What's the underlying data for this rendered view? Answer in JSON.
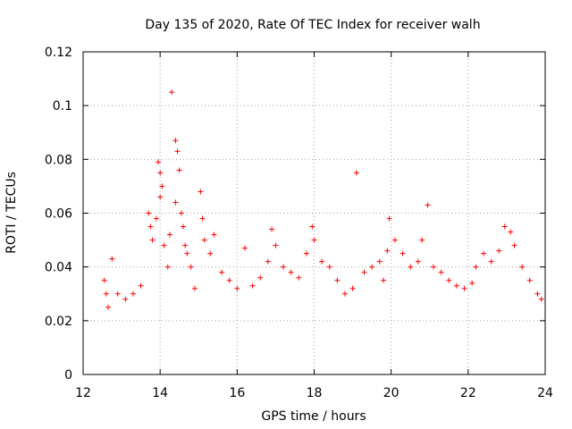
{
  "chart_data": {
    "type": "scatter",
    "title": "Day 135 of 2020, Rate Of TEC Index for receiver walh",
    "xlabel": "GPS time / hours",
    "ylabel": "ROTI / TECUs",
    "xlim": [
      12,
      24
    ],
    "ylim": [
      0,
      0.12
    ],
    "x_ticks": [
      "12",
      "14",
      "16",
      "18",
      "20",
      "22",
      "24"
    ],
    "y_ticks": [
      "0",
      "0.02",
      "0.04",
      "0.06",
      "0.08",
      "0.1",
      "0.12"
    ],
    "grid": true,
    "marker": "plus",
    "color": "#ff0000",
    "series": [
      {
        "points": [
          [
            12.55,
            0.035
          ],
          [
            12.6,
            0.03
          ],
          [
            12.65,
            0.025
          ],
          [
            12.75,
            0.043
          ],
          [
            12.9,
            0.03
          ],
          [
            13.1,
            0.028
          ],
          [
            13.3,
            0.03
          ],
          [
            13.5,
            0.033
          ],
          [
            13.7,
            0.06
          ],
          [
            13.75,
            0.055
          ],
          [
            13.8,
            0.05
          ],
          [
            13.9,
            0.058
          ],
          [
            13.95,
            0.079
          ],
          [
            14.0,
            0.075
          ],
          [
            14.05,
            0.07
          ],
          [
            14.0,
            0.066
          ],
          [
            14.1,
            0.048
          ],
          [
            14.2,
            0.04
          ],
          [
            14.25,
            0.052
          ],
          [
            14.3,
            0.105
          ],
          [
            14.4,
            0.087
          ],
          [
            14.45,
            0.083
          ],
          [
            14.5,
            0.076
          ],
          [
            14.4,
            0.064
          ],
          [
            14.55,
            0.06
          ],
          [
            14.6,
            0.055
          ],
          [
            14.65,
            0.048
          ],
          [
            14.7,
            0.045
          ],
          [
            14.8,
            0.04
          ],
          [
            14.9,
            0.032
          ],
          [
            15.05,
            0.068
          ],
          [
            15.1,
            0.058
          ],
          [
            15.15,
            0.05
          ],
          [
            15.3,
            0.045
          ],
          [
            15.4,
            0.052
          ],
          [
            15.6,
            0.038
          ],
          [
            15.8,
            0.035
          ],
          [
            16.0,
            0.032
          ],
          [
            16.2,
            0.047
          ],
          [
            16.4,
            0.033
          ],
          [
            16.6,
            0.036
          ],
          [
            16.8,
            0.042
          ],
          [
            16.9,
            0.054
          ],
          [
            17.0,
            0.048
          ],
          [
            17.2,
            0.04
          ],
          [
            17.4,
            0.038
          ],
          [
            17.6,
            0.036
          ],
          [
            17.8,
            0.045
          ],
          [
            17.95,
            0.055
          ],
          [
            18.0,
            0.05
          ],
          [
            18.2,
            0.042
          ],
          [
            18.4,
            0.04
          ],
          [
            18.6,
            0.035
          ],
          [
            18.8,
            0.03
          ],
          [
            19.0,
            0.032
          ],
          [
            19.1,
            0.075
          ],
          [
            19.3,
            0.038
          ],
          [
            19.5,
            0.04
          ],
          [
            19.7,
            0.042
          ],
          [
            19.8,
            0.035
          ],
          [
            19.9,
            0.046
          ],
          [
            19.95,
            0.058
          ],
          [
            20.1,
            0.05
          ],
          [
            20.3,
            0.045
          ],
          [
            20.5,
            0.04
          ],
          [
            20.7,
            0.042
          ],
          [
            20.8,
            0.05
          ],
          [
            20.95,
            0.063
          ],
          [
            21.1,
            0.04
          ],
          [
            21.3,
            0.038
          ],
          [
            21.5,
            0.035
          ],
          [
            21.7,
            0.033
          ],
          [
            21.9,
            0.032
          ],
          [
            22.1,
            0.034
          ],
          [
            22.2,
            0.04
          ],
          [
            22.4,
            0.045
          ],
          [
            22.6,
            0.042
          ],
          [
            22.8,
            0.046
          ],
          [
            22.95,
            0.055
          ],
          [
            23.1,
            0.053
          ],
          [
            23.2,
            0.048
          ],
          [
            23.4,
            0.04
          ],
          [
            23.6,
            0.035
          ],
          [
            23.8,
            0.03
          ],
          [
            23.9,
            0.028
          ]
        ]
      }
    ]
  }
}
